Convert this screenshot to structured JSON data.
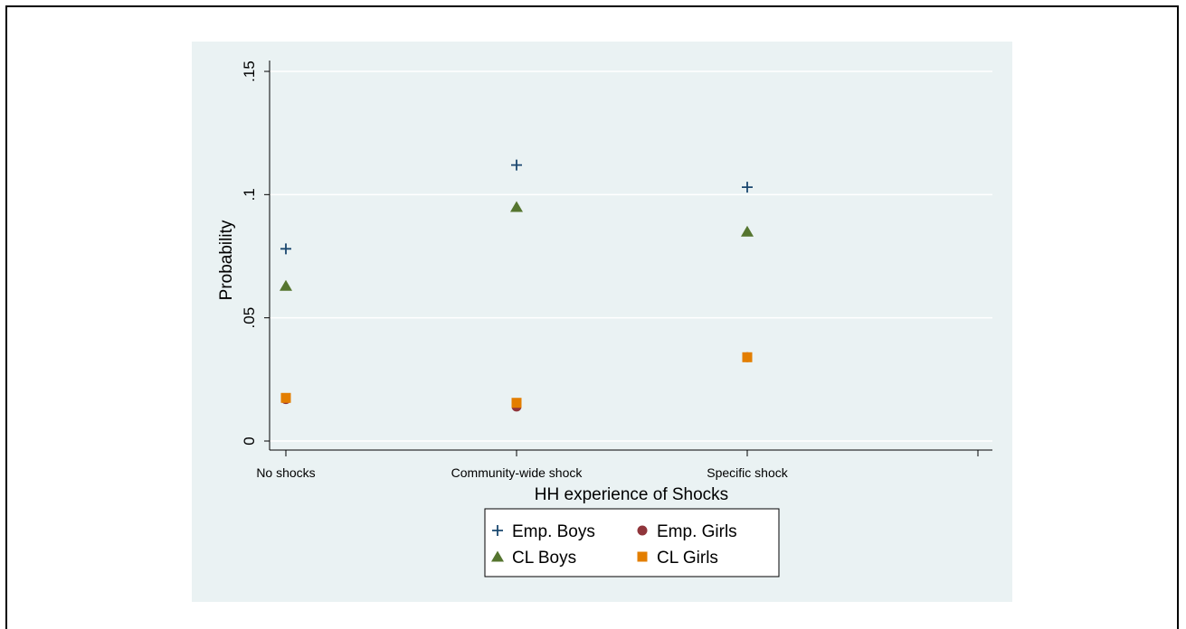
{
  "chart_data": {
    "type": "scatter",
    "categories": [
      "No shocks",
      "Community-wide shock",
      "Specific shock"
    ],
    "xlabel": "HH experience of Shocks",
    "ylabel": "Probability",
    "ylim": [
      0,
      0.15
    ],
    "yticks": [
      0,
      0.05,
      0.1,
      0.15
    ],
    "ytick_labels": [
      "0",
      ".05",
      ".1",
      ".15"
    ],
    "grid": true,
    "legend_position": "bottom",
    "series": [
      {
        "name": "Emp. Boys",
        "marker": "plus",
        "color": "#1a476f",
        "values": [
          0.078,
          0.112,
          0.103
        ]
      },
      {
        "name": "Emp. Girls",
        "marker": "circle",
        "color": "#90353b",
        "values": [
          0.017,
          0.014,
          0.034
        ]
      },
      {
        "name": "CL Boys",
        "marker": "triangle",
        "color": "#55752f",
        "values": [
          0.063,
          0.095,
          0.085
        ]
      },
      {
        "name": "CL Girls",
        "marker": "square",
        "color": "#e37e00",
        "values": [
          0.0175,
          0.0155,
          0.034
        ]
      }
    ],
    "colors": {
      "plot_region_background": "#eaf2f3",
      "gridline": "#ffffff",
      "axis": "#000000",
      "legend_background": "#ffffff"
    }
  }
}
